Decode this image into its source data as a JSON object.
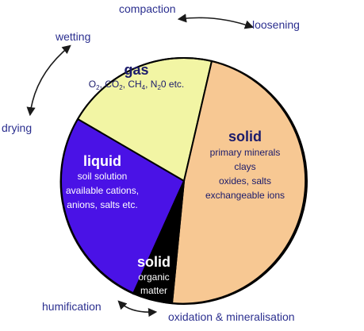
{
  "colors": {
    "outline": "#000000",
    "gas": "#f2f5a4",
    "solid_mineral": "#f7c893",
    "liquid": "#4a12e6",
    "solid_organic": "#000000",
    "arrow": "#1a1a1a",
    "outer_text": "#2b2f8f",
    "dark_text": "#1b1b6b",
    "light_text": "#ffffff"
  },
  "labels": {
    "compaction": "compaction",
    "loosening": "loosening",
    "wetting": "wetting",
    "drying": "drying",
    "humification": "humification",
    "oxidation": "oxidation & mineralisation"
  },
  "gas": {
    "title": "gas",
    "formula": {
      "o": "O",
      "o_sub": "2",
      "sep1": ", CO",
      "co_sub": "2",
      "sep2": ", CH",
      "ch_sub": "4",
      "sep3": ", N",
      "n_sub": "2",
      "tail": "0 etc."
    }
  },
  "solid_mineral": {
    "title": "solid",
    "lines": [
      "primary minerals",
      "clays",
      "oxides, salts",
      "exchangeable ions"
    ]
  },
  "liquid": {
    "title": "liquid",
    "lines": [
      "soil solution",
      "available cations,",
      "anions, salts etc."
    ]
  },
  "solid_organic": {
    "title": "solid",
    "lines": [
      "organic",
      "matter"
    ]
  }
}
